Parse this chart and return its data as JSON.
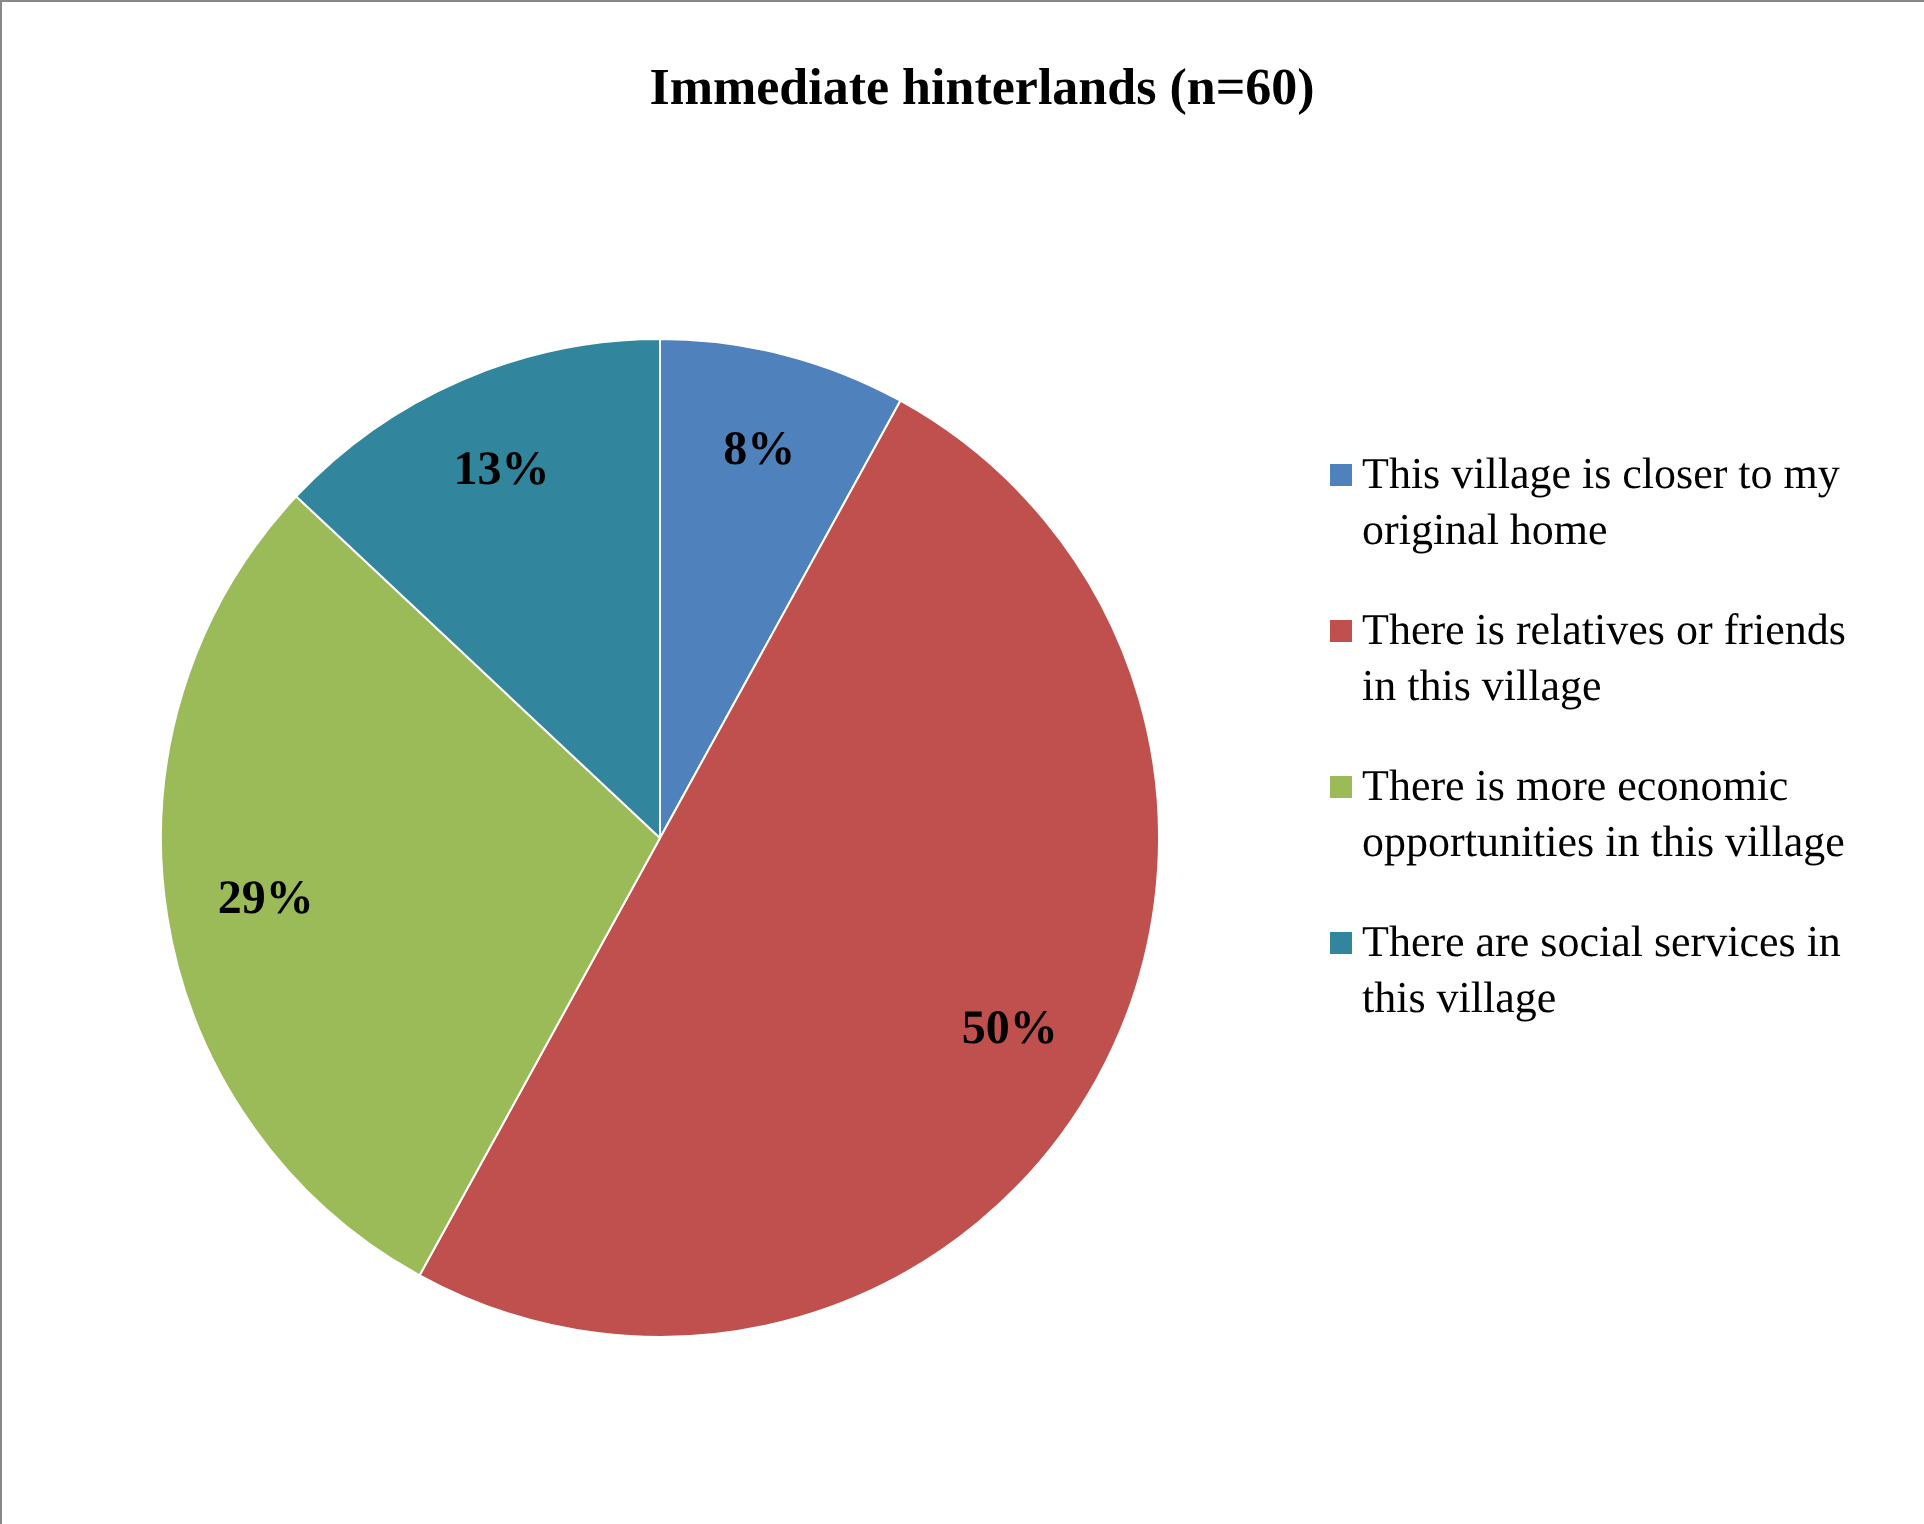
{
  "chart_data": {
    "type": "pie",
    "title": "Immediate hinterlands (n=60)",
    "categories": [
      "This village is closer to my original home",
      "There is relatives or friends in this village",
      "There is more economic opportunities in this village",
      "There are social services in this village"
    ],
    "values": [
      8,
      50,
      29,
      13
    ],
    "colors": [
      "#4f81bd",
      "#c0504d",
      "#9bbb59",
      "#31859c"
    ],
    "value_labels": [
      "8%",
      "50%",
      "29%",
      "13%"
    ],
    "legend": "right"
  }
}
